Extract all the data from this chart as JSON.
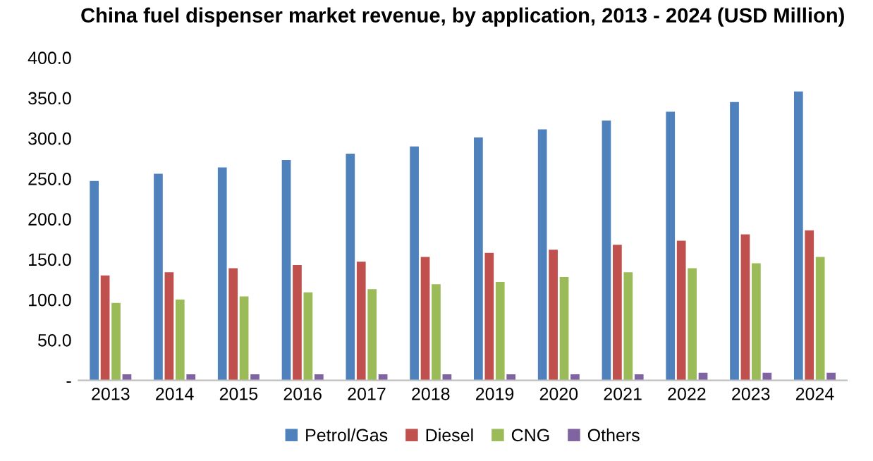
{
  "chart_data": {
    "type": "bar",
    "title": "China fuel dispenser market revenue, by application, 2013 - 2024 (USD Million)",
    "categories": [
      "2013",
      "2014",
      "2015",
      "2016",
      "2017",
      "2018",
      "2019",
      "2020",
      "2021",
      "2022",
      "2023",
      "2024"
    ],
    "series": [
      {
        "name": "Petrol/Gas",
        "color": "#4f81bd",
        "values": [
          247,
          256,
          264,
          273,
          281,
          290,
          301,
          311,
          322,
          333,
          345,
          358
        ]
      },
      {
        "name": "Diesel",
        "color": "#c0504d",
        "values": [
          130,
          134,
          139,
          143,
          147,
          153,
          158,
          162,
          168,
          173,
          181,
          186
        ]
      },
      {
        "name": "CNG",
        "color": "#9bbb59",
        "values": [
          96,
          100,
          104,
          109,
          113,
          119,
          122,
          128,
          134,
          139,
          145,
          153
        ]
      },
      {
        "name": "Others",
        "color": "#8064a2",
        "values": [
          7.5,
          7.5,
          7.5,
          7.5,
          7.5,
          7.5,
          7.5,
          7.5,
          7.5,
          9.5,
          9.5,
          9.5
        ]
      }
    ],
    "ylim": [
      0,
      400
    ],
    "yticks": [
      {
        "value": 0,
        "label": "-"
      },
      {
        "value": 50,
        "label": "50.0"
      },
      {
        "value": 100,
        "label": "100.0"
      },
      {
        "value": 150,
        "label": "150.0"
      },
      {
        "value": 200,
        "label": "200.0"
      },
      {
        "value": 250,
        "label": "250.0"
      },
      {
        "value": 300,
        "label": "300.0"
      },
      {
        "value": 350,
        "label": "350.0"
      },
      {
        "value": 400,
        "label": "400.0"
      }
    ],
    "grid": false,
    "legend": "bottom"
  }
}
